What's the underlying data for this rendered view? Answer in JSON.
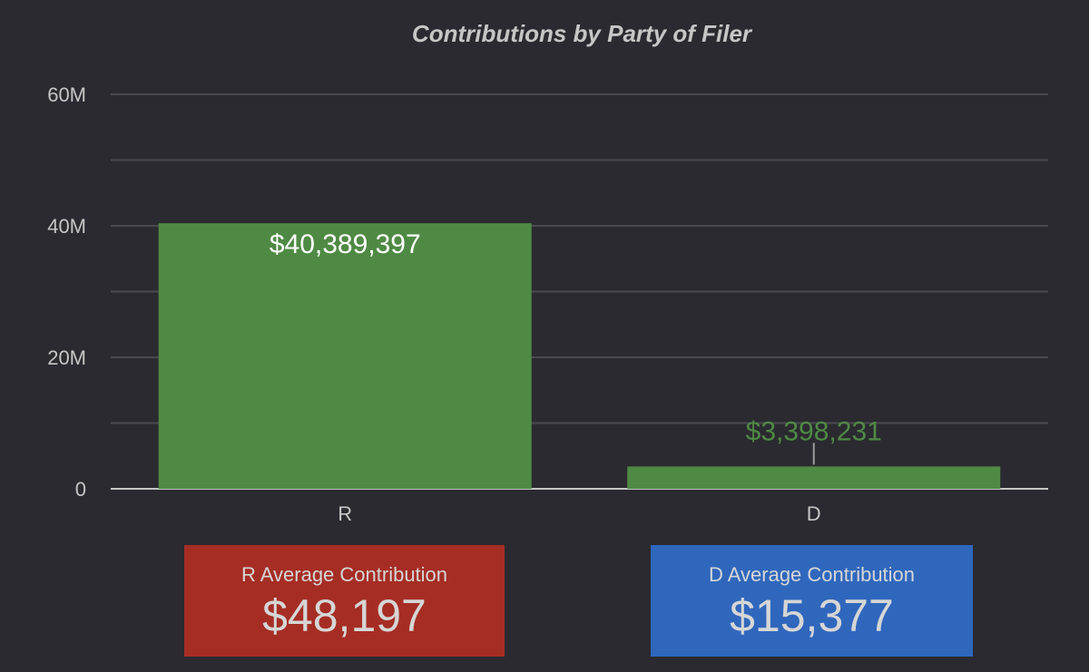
{
  "chart_data": {
    "type": "bar",
    "title": "Contributions by Party of Filer",
    "categories": [
      "R",
      "D"
    ],
    "values": [
      40389397,
      3398231
    ],
    "value_labels": [
      "$40,389,397",
      "$3,398,231"
    ],
    "ylim": [
      0,
      60000000
    ],
    "y_ticks": [
      {
        "value": 0,
        "label": "0"
      },
      {
        "value": 20000000,
        "label": "20M"
      },
      {
        "value": 40000000,
        "label": "40M"
      },
      {
        "value": 60000000,
        "label": "60M"
      }
    ],
    "minor_gridlines": [
      10000000,
      30000000,
      50000000
    ],
    "grid": true,
    "bar_color": "#4f8a44",
    "label_inside_color": "#ffffff",
    "label_outside_color": "#4f8a44"
  },
  "cards": [
    {
      "label": "R Average Contribution",
      "value": "$48,197",
      "color": "#a62d24"
    },
    {
      "label": "D Average Contribution",
      "value": "$15,377",
      "color": "#2f67bd"
    }
  ]
}
